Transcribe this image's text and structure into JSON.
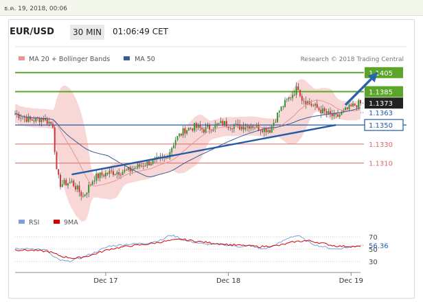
{
  "datetime": "ธ.ค. 19, 2018, 00:06",
  "header": {
    "pair": "EUR/USD",
    "timeframe": "30 MIN",
    "time": "01:06:49 CET"
  },
  "credit": "Research © 2018 Trading Central",
  "colors": {
    "support": "#1f5aa6",
    "resistance_green": "#5aa52a",
    "resistance_red": "#e06666",
    "ma20": "#e89595",
    "bands": "#f6caca",
    "ma50": "#3a5b95",
    "arrow": "#2a64a8",
    "rsi": "#7a9fd9",
    "rsi_ma": "#d00000"
  },
  "chart_data": [
    {
      "type": "candlestick",
      "legend": [
        "MA 20 + Bollinger Bands",
        "MA 50"
      ],
      "x_ticks": [
        "Dec 17",
        "Dec 18",
        "Dec 19"
      ],
      "ylim": [
        1.1265,
        1.142
      ],
      "levels": [
        {
          "value": 1.1405,
          "label": "1.1405",
          "color": "green"
        },
        {
          "value": 1.1385,
          "label": "1.1385",
          "color": "green"
        },
        {
          "value": 1.1373,
          "label": "1.1373",
          "color": "last_price"
        },
        {
          "value": 1.1363,
          "label": "1.1363",
          "color": "support_dotted"
        },
        {
          "value": 1.135,
          "label": "1.1350",
          "color": "blue"
        },
        {
          "value": 1.133,
          "label": "1.1330",
          "color": "red"
        },
        {
          "value": 1.131,
          "label": "1.1310",
          "color": "red"
        }
      ],
      "close_path": [
        [
          0,
          1.1362
        ],
        [
          8,
          1.1355
        ],
        [
          15,
          1.1357
        ],
        [
          20,
          1.135
        ],
        [
          22,
          1.13
        ],
        [
          24,
          1.1288
        ],
        [
          30,
          1.129
        ],
        [
          34,
          1.128
        ],
        [
          36,
          1.1275
        ],
        [
          42,
          1.1295
        ],
        [
          50,
          1.13
        ],
        [
          60,
          1.1302
        ],
        [
          70,
          1.131
        ],
        [
          80,
          1.1315
        ],
        [
          85,
          1.1335
        ],
        [
          90,
          1.1345
        ],
        [
          95,
          1.1348
        ],
        [
          100,
          1.1345
        ],
        [
          110,
          1.1352
        ],
        [
          118,
          1.1348
        ],
        [
          125,
          1.135
        ],
        [
          130,
          1.1347
        ],
        [
          135,
          1.1345
        ],
        [
          140,
          1.1365
        ],
        [
          145,
          1.1378
        ],
        [
          148,
          1.1385
        ],
        [
          150,
          1.139
        ],
        [
          152,
          1.1378
        ],
        [
          158,
          1.137
        ],
        [
          165,
          1.1362
        ],
        [
          170,
          1.1358
        ],
        [
          175,
          1.1365
        ],
        [
          180,
          1.1371
        ],
        [
          183,
          1.1373
        ]
      ],
      "trendline": [
        [
          30,
          1.1298
        ],
        [
          170,
          1.135
        ]
      ],
      "projection_arrow": [
        [
          175,
          1.1371
        ],
        [
          192,
          1.1405
        ]
      ]
    },
    {
      "type": "line",
      "legend": [
        "RSI",
        "9MA"
      ],
      "y_ticks": [
        30,
        50,
        70
      ],
      "last_value": "56.36",
      "rsi": [
        [
          0,
          50
        ],
        [
          10,
          51
        ],
        [
          17,
          48
        ],
        [
          20,
          38
        ],
        [
          24,
          32
        ],
        [
          28,
          30
        ],
        [
          35,
          36
        ],
        [
          40,
          42
        ],
        [
          50,
          55
        ],
        [
          60,
          58
        ],
        [
          70,
          60
        ],
        [
          78,
          65
        ],
        [
          82,
          73
        ],
        [
          86,
          70
        ],
        [
          90,
          64
        ],
        [
          100,
          58
        ],
        [
          110,
          58
        ],
        [
          118,
          54
        ],
        [
          125,
          56
        ],
        [
          130,
          50
        ],
        [
          134,
          52
        ],
        [
          140,
          60
        ],
        [
          146,
          70
        ],
        [
          150,
          72
        ],
        [
          155,
          62
        ],
        [
          160,
          56
        ],
        [
          166,
          52
        ],
        [
          170,
          50
        ],
        [
          178,
          54
        ],
        [
          183,
          56
        ]
      ],
      "ma": [
        [
          0,
          49
        ],
        [
          10,
          48
        ],
        [
          18,
          46
        ],
        [
          25,
          38
        ],
        [
          32,
          35
        ],
        [
          40,
          40
        ],
        [
          50,
          50
        ],
        [
          60,
          55
        ],
        [
          70,
          58
        ],
        [
          80,
          63
        ],
        [
          88,
          66
        ],
        [
          98,
          62
        ],
        [
          110,
          58
        ],
        [
          120,
          56
        ],
        [
          130,
          54
        ],
        [
          140,
          56
        ],
        [
          148,
          62
        ],
        [
          155,
          64
        ],
        [
          162,
          60
        ],
        [
          170,
          55
        ],
        [
          183,
          54
        ]
      ]
    }
  ]
}
